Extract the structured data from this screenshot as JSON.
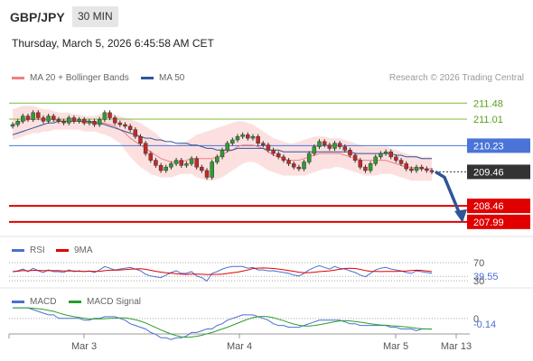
{
  "header": {
    "symbol": "GBP/JPY",
    "timeframe": "30 MIN",
    "datetime": "Thursday, March 5, 2026 6:45:58 AM CET"
  },
  "legend": {
    "ma20": "MA 20 + Bollinger Bands",
    "ma50": "MA 50",
    "ma20_color": "#f08080",
    "ma50_color": "#2f5597"
  },
  "credit": "Research © 2026 Trading Central",
  "rsi_legend": {
    "rsi": "RSI",
    "ma": "9MA",
    "rsi_color": "#4a6fd4",
    "ma_color": "#e00000"
  },
  "macd_legend": {
    "macd": "MACD",
    "signal": "MACD Signal",
    "macd_color": "#4a6fd4",
    "signal_color": "#2a9d2a"
  },
  "chart_data": {
    "type": "candlestick",
    "price_ylim": [
      207.8,
      211.7
    ],
    "levels": [
      {
        "label": "211.48",
        "value": 211.48,
        "color": "#7dbb3c",
        "style": "resistance"
      },
      {
        "label": "211.01",
        "value": 211.01,
        "color": "#7dbb3c",
        "style": "resistance"
      },
      {
        "label": "210.23",
        "value": 210.23,
        "color": "#4a74d8",
        "style": "pivot"
      },
      {
        "label": "209.46",
        "value": 209.46,
        "color": "#333333",
        "style": "last"
      },
      {
        "label": "208.46",
        "value": 208.46,
        "color": "#e00000",
        "style": "support"
      },
      {
        "label": "207.99",
        "value": 207.99,
        "color": "#e00000",
        "style": "support"
      }
    ],
    "x_ticks": [
      "Mar 3",
      "Mar 4",
      "Mar 5",
      "Mar 13"
    ],
    "close": [
      210.85,
      210.95,
      211.1,
      211.0,
      211.2,
      211.05,
      210.95,
      211.1,
      211.0,
      210.95,
      210.9,
      211.05,
      210.95,
      211.0,
      210.9,
      210.95,
      210.85,
      211.0,
      211.2,
      211.05,
      210.9,
      210.85,
      210.8,
      210.7,
      210.5,
      210.3,
      210.0,
      209.8,
      209.65,
      209.5,
      209.6,
      209.7,
      209.8,
      209.65,
      209.7,
      209.85,
      209.6,
      209.5,
      209.3,
      209.75,
      209.9,
      210.1,
      210.3,
      210.4,
      210.5,
      210.55,
      210.45,
      210.5,
      210.3,
      210.25,
      210.1,
      210.0,
      209.9,
      209.8,
      209.7,
      209.6,
      209.55,
      209.75,
      210.0,
      210.2,
      210.35,
      210.25,
      210.15,
      210.3,
      210.2,
      210.1,
      209.95,
      209.8,
      209.6,
      209.5,
      209.7,
      209.9,
      210.0,
      210.05,
      209.9,
      209.8,
      209.7,
      209.55,
      209.5,
      209.6,
      209.55,
      209.5,
      209.46
    ],
    "bb_upper": [
      211.3,
      211.35,
      211.4,
      211.4,
      211.4,
      211.35,
      211.3,
      211.3,
      211.25,
      211.2,
      211.2,
      211.2,
      211.15,
      211.15,
      211.1,
      211.1,
      211.1,
      211.15,
      211.2,
      211.2,
      211.15,
      211.1,
      211.05,
      211.0,
      210.95,
      210.9,
      210.8,
      210.7,
      210.6,
      210.45,
      210.3,
      210.25,
      210.25,
      210.3,
      210.35,
      210.45,
      210.55,
      210.6,
      210.65,
      210.7,
      210.75,
      210.8,
      210.85,
      210.9,
      210.95,
      210.95,
      210.9,
      210.85,
      210.75,
      210.65,
      210.55,
      210.45,
      210.4,
      210.35,
      210.3,
      210.3,
      210.35,
      210.4,
      210.45,
      210.5,
      210.5,
      210.5,
      210.45,
      210.45,
      210.45,
      210.4,
      210.35,
      210.3,
      210.25,
      210.2,
      210.2,
      210.2,
      210.2,
      210.2,
      210.15,
      210.1,
      210.05,
      210.0,
      209.95,
      209.95,
      209.9,
      209.9,
      209.9
    ],
    "bb_lower": [
      210.4,
      210.45,
      210.5,
      210.55,
      210.6,
      210.6,
      210.65,
      210.65,
      210.7,
      210.7,
      210.7,
      210.7,
      210.7,
      210.7,
      210.65,
      210.65,
      210.65,
      210.6,
      210.55,
      210.5,
      210.4,
      210.3,
      210.1,
      209.9,
      209.75,
      209.6,
      209.5,
      209.4,
      209.35,
      209.3,
      209.3,
      209.3,
      209.35,
      209.4,
      209.4,
      209.4,
      209.3,
      209.25,
      209.2,
      209.2,
      209.25,
      209.3,
      209.4,
      209.5,
      209.6,
      209.7,
      209.75,
      209.75,
      209.7,
      209.6,
      209.5,
      209.45,
      209.4,
      209.35,
      209.35,
      209.35,
      209.35,
      209.35,
      209.4,
      209.45,
      209.5,
      209.55,
      209.55,
      209.6,
      209.6,
      209.55,
      209.5,
      209.45,
      209.4,
      209.35,
      209.35,
      209.35,
      209.4,
      209.4,
      209.4,
      209.35,
      209.3,
      209.25,
      209.2,
      209.2,
      209.2,
      209.2,
      209.2
    ],
    "ma20": [
      210.85,
      210.9,
      210.95,
      211.0,
      211.0,
      211.0,
      211.0,
      211.0,
      211.0,
      210.95,
      210.95,
      210.95,
      210.95,
      210.95,
      210.9,
      210.9,
      210.9,
      210.9,
      210.9,
      210.85,
      210.8,
      210.7,
      210.6,
      210.45,
      210.35,
      210.25,
      210.15,
      210.05,
      209.95,
      209.85,
      209.8,
      209.75,
      209.75,
      209.75,
      209.8,
      209.85,
      209.85,
      209.85,
      209.85,
      209.85,
      209.9,
      209.95,
      210.05,
      210.1,
      210.2,
      210.25,
      210.25,
      210.25,
      210.2,
      210.15,
      210.05,
      209.95,
      209.9,
      209.85,
      209.8,
      209.8,
      209.8,
      209.85,
      209.9,
      209.95,
      210.0,
      210.0,
      210.0,
      210.0,
      210.0,
      209.95,
      209.9,
      209.85,
      209.8,
      209.8,
      209.8,
      209.8,
      209.8,
      209.8,
      209.75,
      209.7,
      209.65,
      209.6,
      209.6,
      209.55,
      209.55,
      209.55,
      209.55
    ],
    "ma50": [
      210.55,
      210.6,
      210.65,
      210.7,
      210.75,
      210.8,
      210.85,
      210.9,
      210.9,
      210.95,
      210.95,
      210.95,
      210.95,
      210.95,
      210.95,
      210.95,
      210.9,
      210.9,
      210.85,
      210.8,
      210.75,
      210.7,
      210.65,
      210.6,
      210.55,
      210.5,
      210.45,
      210.45,
      210.4,
      210.4,
      210.35,
      210.35,
      210.3,
      210.3,
      210.3,
      210.25,
      210.25,
      210.2,
      210.15,
      210.15,
      210.1,
      210.1,
      210.1,
      210.1,
      210.15,
      210.15,
      210.15,
      210.15,
      210.15,
      210.15,
      210.1,
      210.1,
      210.1,
      210.05,
      210.05,
      210.05,
      210.05,
      210.05,
      210.05,
      210.05,
      210.05,
      210.05,
      210.05,
      210.05,
      210.05,
      210.05,
      210.05,
      210.0,
      210.0,
      210.0,
      210.0,
      210.0,
      210.0,
      210.0,
      210.0,
      209.95,
      209.95,
      209.9,
      209.9,
      209.9,
      209.85,
      209.85,
      209.85
    ],
    "rsi": {
      "ylim": [
        20,
        80
      ],
      "levels": [
        {
          "label": "70",
          "value": 70
        },
        {
          "label": "39.55",
          "value": 39.55
        },
        {
          "label": "30",
          "value": 30
        }
      ],
      "rsi_last": 39.55
    },
    "macd": {
      "levels": [
        {
          "label": "0",
          "value": 0
        },
        {
          "label": "-0.14",
          "value": -0.14
        }
      ],
      "ylim": [
        -0.35,
        0.25
      ]
    }
  }
}
